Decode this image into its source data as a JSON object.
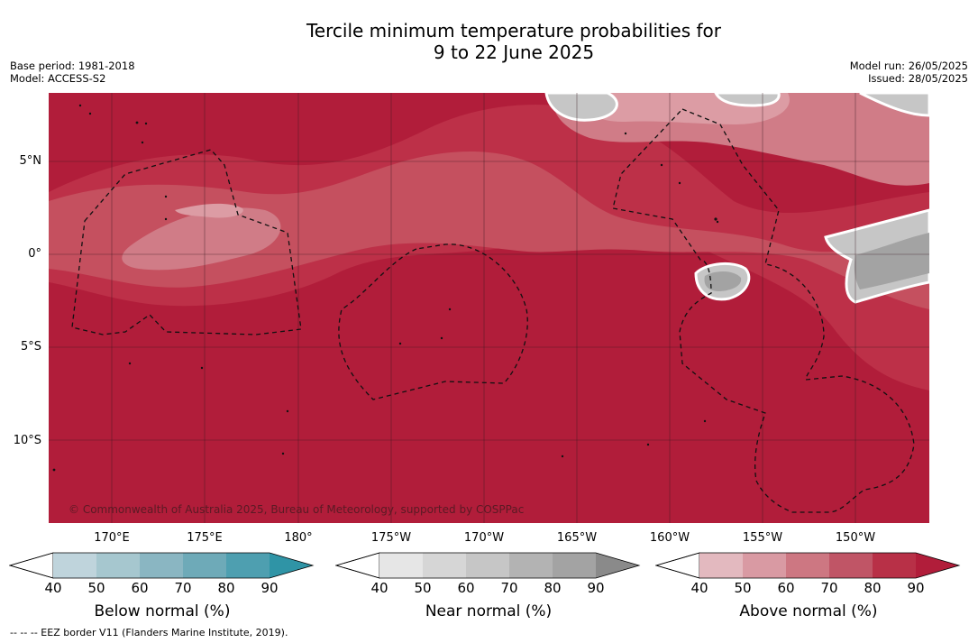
{
  "title_line1": "Tercile minimum temperature probabilities for",
  "title_line2": "9 to 22 June 2025",
  "meta_left": {
    "base_period": "Base period: 1981-2018",
    "model": "Model: ACCESS-S2"
  },
  "meta_right": {
    "model_run": "Model run: 26/05/2025",
    "issued": "Issued: 28/05/2025"
  },
  "lat_labels": [
    "5°N",
    "0°",
    "5°S",
    "10°S"
  ],
  "lon_labels": [
    "170°E",
    "175°E",
    "180°",
    "175°W",
    "170°W",
    "165°W",
    "160°W",
    "155°W",
    "150°W"
  ],
  "credit": "© Commonwealth of Australia 2025, Bureau of Meteorology, supported by COSPPac",
  "colorbars": [
    {
      "title": "Below normal (%)",
      "ticks": [
        "40",
        "50",
        "60",
        "70",
        "80",
        "90"
      ],
      "colors": [
        "#bfd4dc",
        "#a6c7cf",
        "#8ab6c2",
        "#6eaab8",
        "#4e9fb0",
        "#2f94a6"
      ]
    },
    {
      "title": "Near normal (%)",
      "ticks": [
        "40",
        "50",
        "60",
        "70",
        "80",
        "90"
      ],
      "colors": [
        "#e6e6e6",
        "#d6d6d6",
        "#c6c6c6",
        "#b3b3b3",
        "#a3a3a3",
        "#8a8a8a"
      ]
    },
    {
      "title": "Above normal (%)",
      "ticks": [
        "40",
        "50",
        "60",
        "70",
        "80",
        "90"
      ],
      "colors": [
        "#e3b9bf",
        "#d99aa3",
        "#cd7782",
        "#c05566",
        "#b83047",
        "#b11d3a"
      ]
    }
  ],
  "footer": "-- -- -- EEZ border V11 (Flanders Marine Institute, 2019).",
  "map_colors": {
    "above_90": "#b11d3a",
    "above_80": "#bd3048",
    "above_70": "#c5505f",
    "above_60": "#d07c87",
    "above_50": "#dc9ca4",
    "near": "#a3a3a3",
    "near_light": "#c6c6c6"
  }
}
